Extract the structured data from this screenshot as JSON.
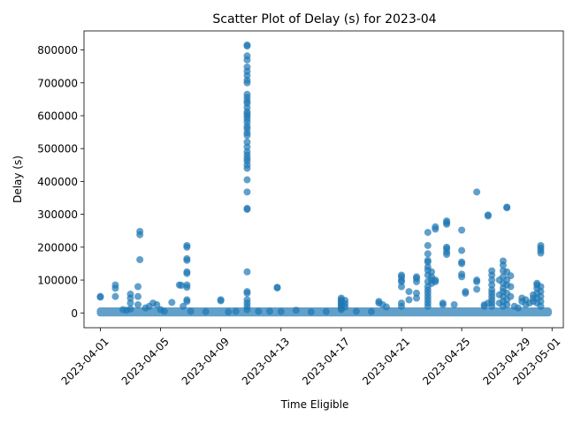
{
  "chart_data": {
    "type": "scatter",
    "title": "Scatter Plot of Delay (s) for 2023-04",
    "xlabel": "Time Eligible",
    "ylabel": "Delay (s)",
    "xlim": [
      "2023-03-30T22:00",
      "2023-05-01T18:00"
    ],
    "ylim": [
      -45000,
      858000
    ],
    "x_ticks": [
      "2023-04-01",
      "2023-04-05",
      "2023-04-09",
      "2023-04-13",
      "2023-04-17",
      "2023-04-21",
      "2023-04-25",
      "2023-04-29",
      "2023-05-01"
    ],
    "y_ticks": [
      0,
      100000,
      200000,
      300000,
      400000,
      500000,
      600000,
      700000,
      800000
    ],
    "grid": false,
    "marker_color": "#1f77b4",
    "marker_alpha": 0.7,
    "points": [
      [
        "2023-04-01T00:00",
        50000
      ],
      [
        "2023-04-01T00:00",
        48000
      ],
      [
        "2023-04-02T00:00",
        85000
      ],
      [
        "2023-04-02T00:00",
        75000
      ],
      [
        "2023-04-02T00:00",
        50000
      ],
      [
        "2023-04-02T12:00",
        10000
      ],
      [
        "2023-04-02T18:00",
        8000
      ],
      [
        "2023-04-03T00:00",
        57000
      ],
      [
        "2023-04-03T00:00",
        45000
      ],
      [
        "2023-04-03T00:00",
        30000
      ],
      [
        "2023-04-03T00:00",
        12000
      ],
      [
        "2023-04-03T12:00",
        80000
      ],
      [
        "2023-04-03T12:00",
        50000
      ],
      [
        "2023-04-03T12:00",
        25000
      ],
      [
        "2023-04-03T15:00",
        248000
      ],
      [
        "2023-04-03T15:00",
        238000
      ],
      [
        "2023-04-03T15:00",
        162000
      ],
      [
        "2023-04-04T00:00",
        15000
      ],
      [
        "2023-04-04T06:00",
        20000
      ],
      [
        "2023-04-04T12:00",
        30000
      ],
      [
        "2023-04-04T18:00",
        25000
      ],
      [
        "2023-04-05T00:00",
        10000
      ],
      [
        "2023-04-05T06:00",
        5000
      ],
      [
        "2023-04-05T18:00",
        32000
      ],
      [
        "2023-04-06T06:00",
        85000
      ],
      [
        "2023-04-06T09:00",
        84000
      ],
      [
        "2023-04-06T12:00",
        20000
      ],
      [
        "2023-04-06T18:00",
        205000
      ],
      [
        "2023-04-06T18:00",
        200000
      ],
      [
        "2023-04-06T18:00",
        165000
      ],
      [
        "2023-04-06T18:00",
        160000
      ],
      [
        "2023-04-06T18:00",
        125000
      ],
      [
        "2023-04-06T18:00",
        120000
      ],
      [
        "2023-04-06T18:00",
        85000
      ],
      [
        "2023-04-06T18:00",
        78000
      ],
      [
        "2023-04-06T18:00",
        40000
      ],
      [
        "2023-04-06T18:00",
        35000
      ],
      [
        "2023-04-07T00:00",
        5000
      ],
      [
        "2023-04-08T00:00",
        4000
      ],
      [
        "2023-04-09T00:00",
        40000
      ],
      [
        "2023-04-09T00:00",
        37000
      ],
      [
        "2023-04-09T12:00",
        3000
      ],
      [
        "2023-04-10T00:00",
        5000
      ],
      [
        "2023-04-10T18:00",
        815000
      ],
      [
        "2023-04-10T18:00",
        812000
      ],
      [
        "2023-04-10T18:00",
        782000
      ],
      [
        "2023-04-10T18:00",
        770000
      ],
      [
        "2023-04-10T18:00",
        748000
      ],
      [
        "2023-04-10T18:00",
        735000
      ],
      [
        "2023-04-10T18:00",
        722000
      ],
      [
        "2023-04-10T18:00",
        708000
      ],
      [
        "2023-04-10T18:00",
        700000
      ],
      [
        "2023-04-10T18:00",
        665000
      ],
      [
        "2023-04-10T18:00",
        655000
      ],
      [
        "2023-04-10T18:00",
        645000
      ],
      [
        "2023-04-10T18:00",
        638000
      ],
      [
        "2023-04-10T18:00",
        625000
      ],
      [
        "2023-04-10T18:00",
        612000
      ],
      [
        "2023-04-10T18:00",
        605000
      ],
      [
        "2023-04-10T18:00",
        598000
      ],
      [
        "2023-04-10T18:00",
        590000
      ],
      [
        "2023-04-10T18:00",
        580000
      ],
      [
        "2023-04-10T18:00",
        568000
      ],
      [
        "2023-04-10T18:00",
        560000
      ],
      [
        "2023-04-10T18:00",
        548000
      ],
      [
        "2023-04-10T18:00",
        540000
      ],
      [
        "2023-04-10T18:00",
        520000
      ],
      [
        "2023-04-10T18:00",
        505000
      ],
      [
        "2023-04-10T18:00",
        490000
      ],
      [
        "2023-04-10T18:00",
        480000
      ],
      [
        "2023-04-10T18:00",
        470000
      ],
      [
        "2023-04-10T18:00",
        462000
      ],
      [
        "2023-04-10T18:00",
        450000
      ],
      [
        "2023-04-10T18:00",
        440000
      ],
      [
        "2023-04-10T18:00",
        405000
      ],
      [
        "2023-04-10T18:00",
        368000
      ],
      [
        "2023-04-10T18:00",
        318000
      ],
      [
        "2023-04-10T18:00",
        315000
      ],
      [
        "2023-04-10T18:00",
        125000
      ],
      [
        "2023-04-10T18:00",
        65000
      ],
      [
        "2023-04-10T18:00",
        60000
      ],
      [
        "2023-04-10T18:00",
        40000
      ],
      [
        "2023-04-10T18:00",
        30000
      ],
      [
        "2023-04-10T18:00",
        20000
      ],
      [
        "2023-04-10T18:00",
        10000
      ],
      [
        "2023-04-11T12:00",
        5000
      ],
      [
        "2023-04-12T06:00",
        5000
      ],
      [
        "2023-04-12T18:00",
        78000
      ],
      [
        "2023-04-12T18:00",
        76000
      ],
      [
        "2023-04-13T00:00",
        4000
      ],
      [
        "2023-04-14T00:00",
        8000
      ],
      [
        "2023-04-15T00:00",
        3000
      ],
      [
        "2023-04-16T00:00",
        4000
      ],
      [
        "2023-04-17T00:00",
        45000
      ],
      [
        "2023-04-17T00:00",
        40000
      ],
      [
        "2023-04-17T00:00",
        35000
      ],
      [
        "2023-04-17T00:00",
        30000
      ],
      [
        "2023-04-17T00:00",
        25000
      ],
      [
        "2023-04-17T00:00",
        20000
      ],
      [
        "2023-04-17T00:00",
        15000
      ],
      [
        "2023-04-17T00:00",
        10000
      ],
      [
        "2023-04-17T06:00",
        38000
      ],
      [
        "2023-04-17T06:00",
        28000
      ],
      [
        "2023-04-17T06:00",
        18000
      ],
      [
        "2023-04-18T00:00",
        5000
      ],
      [
        "2023-04-19T00:00",
        4000
      ],
      [
        "2023-04-19T12:00",
        35000
      ],
      [
        "2023-04-19T12:00",
        30000
      ],
      [
        "2023-04-19T18:00",
        25000
      ],
      [
        "2023-04-20T00:00",
        18000
      ],
      [
        "2023-04-21T00:00",
        115000
      ],
      [
        "2023-04-21T00:00",
        110000
      ],
      [
        "2023-04-21T00:00",
        100000
      ],
      [
        "2023-04-21T00:00",
        95000
      ],
      [
        "2023-04-21T00:00",
        80000
      ],
      [
        "2023-04-21T00:00",
        30000
      ],
      [
        "2023-04-21T00:00",
        20000
      ],
      [
        "2023-04-21T12:00",
        65000
      ],
      [
        "2023-04-21T12:00",
        40000
      ],
      [
        "2023-04-22T00:00",
        110000
      ],
      [
        "2023-04-22T00:00",
        105000
      ],
      [
        "2023-04-22T00:00",
        95000
      ],
      [
        "2023-04-22T00:00",
        60000
      ],
      [
        "2023-04-22T00:00",
        45000
      ],
      [
        "2023-04-22T18:00",
        245000
      ],
      [
        "2023-04-22T18:00",
        205000
      ],
      [
        "2023-04-22T18:00",
        180000
      ],
      [
        "2023-04-22T18:00",
        160000
      ],
      [
        "2023-04-22T18:00",
        155000
      ],
      [
        "2023-04-22T18:00",
        140000
      ],
      [
        "2023-04-22T18:00",
        130000
      ],
      [
        "2023-04-22T18:00",
        115000
      ],
      [
        "2023-04-22T18:00",
        95000
      ],
      [
        "2023-04-22T18:00",
        80000
      ],
      [
        "2023-04-22T18:00",
        70000
      ],
      [
        "2023-04-22T18:00",
        60000
      ],
      [
        "2023-04-22T18:00",
        50000
      ],
      [
        "2023-04-22T18:00",
        40000
      ],
      [
        "2023-04-22T18:00",
        30000
      ],
      [
        "2023-04-22T18:00",
        20000
      ],
      [
        "2023-04-23T00:00",
        125000
      ],
      [
        "2023-04-23T00:00",
        110000
      ],
      [
        "2023-04-23T00:00",
        100000
      ],
      [
        "2023-04-23T00:00",
        90000
      ],
      [
        "2023-04-23T06:00",
        262000
      ],
      [
        "2023-04-23T06:00",
        255000
      ],
      [
        "2023-04-23T06:00",
        100000
      ],
      [
        "2023-04-23T06:00",
        95000
      ],
      [
        "2023-04-23T18:00",
        30000
      ],
      [
        "2023-04-23T18:00",
        25000
      ],
      [
        "2023-04-24T00:00",
        280000
      ],
      [
        "2023-04-24T00:00",
        275000
      ],
      [
        "2023-04-24T00:00",
        270000
      ],
      [
        "2023-04-24T00:00",
        200000
      ],
      [
        "2023-04-24T00:00",
        195000
      ],
      [
        "2023-04-24T00:00",
        185000
      ],
      [
        "2023-04-24T00:00",
        178000
      ],
      [
        "2023-04-24T12:00",
        25000
      ],
      [
        "2023-04-25T00:00",
        252000
      ],
      [
        "2023-04-25T00:00",
        190000
      ],
      [
        "2023-04-25T00:00",
        155000
      ],
      [
        "2023-04-25T00:00",
        150000
      ],
      [
        "2023-04-25T00:00",
        118000
      ],
      [
        "2023-04-25T00:00",
        110000
      ],
      [
        "2023-04-25T06:00",
        65000
      ],
      [
        "2023-04-25T06:00",
        60000
      ],
      [
        "2023-04-26T00:00",
        368000
      ],
      [
        "2023-04-26T00:00",
        100000
      ],
      [
        "2023-04-26T00:00",
        95000
      ],
      [
        "2023-04-26T00:00",
        72000
      ],
      [
        "2023-04-26T12:00",
        25000
      ],
      [
        "2023-04-26T12:00",
        20000
      ],
      [
        "2023-04-26T18:00",
        298000
      ],
      [
        "2023-04-26T18:00",
        295000
      ],
      [
        "2023-04-26T18:00",
        30000
      ],
      [
        "2023-04-27T00:00",
        128000
      ],
      [
        "2023-04-27T00:00",
        115000
      ],
      [
        "2023-04-27T00:00",
        100000
      ],
      [
        "2023-04-27T00:00",
        85000
      ],
      [
        "2023-04-27T00:00",
        70000
      ],
      [
        "2023-04-27T00:00",
        60000
      ],
      [
        "2023-04-27T00:00",
        50000
      ],
      [
        "2023-04-27T00:00",
        40000
      ],
      [
        "2023-04-27T00:00",
        30000
      ],
      [
        "2023-04-27T00:00",
        20000
      ],
      [
        "2023-04-27T12:00",
        100000
      ],
      [
        "2023-04-27T12:00",
        55000
      ],
      [
        "2023-04-27T12:00",
        30000
      ],
      [
        "2023-04-27T18:00",
        158000
      ],
      [
        "2023-04-27T18:00",
        145000
      ],
      [
        "2023-04-27T18:00",
        128000
      ],
      [
        "2023-04-27T18:00",
        110000
      ],
      [
        "2023-04-27T18:00",
        90000
      ],
      [
        "2023-04-27T18:00",
        75000
      ],
      [
        "2023-04-27T18:00",
        65000
      ],
      [
        "2023-04-27T18:00",
        50000
      ],
      [
        "2023-04-27T18:00",
        35000
      ],
      [
        "2023-04-27T18:00",
        20000
      ],
      [
        "2023-04-28T00:00",
        322000
      ],
      [
        "2023-04-28T00:00",
        320000
      ],
      [
        "2023-04-28T00:00",
        125000
      ],
      [
        "2023-04-28T00:00",
        100000
      ],
      [
        "2023-04-28T00:00",
        85000
      ],
      [
        "2023-04-28T00:00",
        60000
      ],
      [
        "2023-04-28T00:00",
        40000
      ],
      [
        "2023-04-28T00:00",
        25000
      ],
      [
        "2023-04-28T06:00",
        113000
      ],
      [
        "2023-04-28T06:00",
        80000
      ],
      [
        "2023-04-28T06:00",
        50000
      ],
      [
        "2023-04-28T12:00",
        20000
      ],
      [
        "2023-04-28T18:00",
        15000
      ],
      [
        "2023-04-29T00:00",
        45000
      ],
      [
        "2023-04-29T00:00",
        35000
      ],
      [
        "2023-04-29T06:00",
        40000
      ],
      [
        "2023-04-29T06:00",
        25000
      ],
      [
        "2023-04-29T12:00",
        30000
      ],
      [
        "2023-04-29T18:00",
        55000
      ],
      [
        "2023-04-29T18:00",
        45000
      ],
      [
        "2023-04-29T18:00",
        35000
      ],
      [
        "2023-04-30T00:00",
        90000
      ],
      [
        "2023-04-30T00:00",
        85000
      ],
      [
        "2023-04-30T00:00",
        75000
      ],
      [
        "2023-04-30T00:00",
        60000
      ],
      [
        "2023-04-30T00:00",
        45000
      ],
      [
        "2023-04-30T00:00",
        30000
      ],
      [
        "2023-04-30T06:00",
        205000
      ],
      [
        "2023-04-30T06:00",
        198000
      ],
      [
        "2023-04-30T06:00",
        190000
      ],
      [
        "2023-04-30T06:00",
        182000
      ],
      [
        "2023-04-30T06:00",
        80000
      ],
      [
        "2023-04-30T06:00",
        65000
      ],
      [
        "2023-04-30T06:00",
        50000
      ],
      [
        "2023-04-30T06:00",
        35000
      ],
      [
        "2023-04-30T06:00",
        20000
      ]
    ],
    "baseline_band": {
      "x_range": [
        "2023-04-01T00:00",
        "2023-04-30T18:00"
      ],
      "y_range": [
        0,
        6000
      ]
    }
  }
}
